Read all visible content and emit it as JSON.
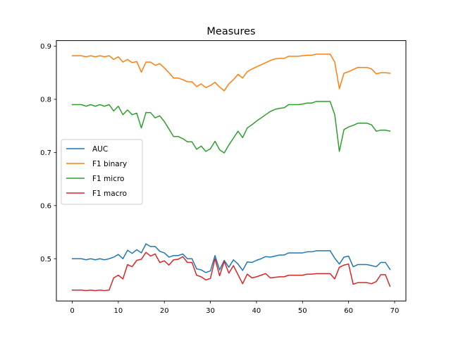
{
  "chart_data": {
    "type": "line",
    "title": "Measures",
    "xlabel": "",
    "ylabel": "",
    "xlim": [
      -3.45,
      72.45
    ],
    "ylim": [
      0.4205,
      0.9105
    ],
    "xticks": [
      0,
      10,
      20,
      30,
      40,
      50,
      60,
      70
    ],
    "yticks": [
      0.5,
      0.6,
      0.7,
      0.8,
      0.9
    ],
    "xtick_labels": [
      "0",
      "10",
      "20",
      "30",
      "40",
      "50",
      "60",
      "70"
    ],
    "ytick_labels": [
      "0.5",
      "0.6",
      "0.7",
      "0.8",
      "0.9"
    ],
    "grid": false,
    "legend_position": "center-left",
    "x": [
      0,
      1,
      2,
      3,
      4,
      5,
      6,
      7,
      8,
      9,
      10,
      11,
      12,
      13,
      14,
      15,
      16,
      17,
      18,
      19,
      20,
      21,
      22,
      23,
      24,
      25,
      26,
      27,
      28,
      29,
      30,
      31,
      32,
      33,
      34,
      35,
      36,
      37,
      38,
      39,
      40,
      41,
      42,
      43,
      44,
      45,
      46,
      47,
      48,
      49,
      50,
      51,
      52,
      53,
      54,
      55,
      56,
      57,
      58,
      59,
      60,
      61,
      62,
      63,
      64,
      65,
      66,
      67,
      68,
      69
    ],
    "series": [
      {
        "name": "AUC",
        "color": "#1f77b4",
        "values": [
          0.5,
          0.5,
          0.5,
          0.498,
          0.5,
          0.498,
          0.5,
          0.498,
          0.5,
          0.503,
          0.508,
          0.5,
          0.516,
          0.51,
          0.517,
          0.511,
          0.528,
          0.523,
          0.523,
          0.514,
          0.511,
          0.503,
          0.506,
          0.506,
          0.509,
          0.5,
          0.5,
          0.481,
          0.479,
          0.474,
          0.477,
          0.506,
          0.479,
          0.497,
          0.484,
          0.498,
          0.49,
          0.478,
          0.494,
          0.493,
          0.497,
          0.5,
          0.504,
          0.503,
          0.505,
          0.507,
          0.507,
          0.511,
          0.511,
          0.511,
          0.511,
          0.513,
          0.513,
          0.515,
          0.515,
          0.515,
          0.515,
          0.501,
          0.49,
          0.503,
          0.505,
          0.485,
          0.489,
          0.489,
          0.489,
          0.487,
          0.485,
          0.493,
          0.493,
          0.48
        ]
      },
      {
        "name": "F1 binary",
        "color": "#ff7f0e",
        "values": [
          0.882,
          0.882,
          0.882,
          0.88,
          0.882,
          0.88,
          0.882,
          0.88,
          0.882,
          0.875,
          0.88,
          0.87,
          0.875,
          0.869,
          0.871,
          0.851,
          0.87,
          0.87,
          0.864,
          0.867,
          0.859,
          0.85,
          0.84,
          0.84,
          0.837,
          0.833,
          0.833,
          0.824,
          0.829,
          0.822,
          0.826,
          0.832,
          0.823,
          0.816,
          0.829,
          0.837,
          0.847,
          0.84,
          0.852,
          0.857,
          0.861,
          0.865,
          0.869,
          0.873,
          0.876,
          0.877,
          0.877,
          0.881,
          0.881,
          0.881,
          0.882,
          0.883,
          0.883,
          0.885,
          0.885,
          0.885,
          0.885,
          0.87,
          0.82,
          0.849,
          0.852,
          0.856,
          0.86,
          0.86,
          0.86,
          0.857,
          0.848,
          0.85,
          0.85,
          0.849
        ]
      },
      {
        "name": "F1 micro",
        "color": "#2ca02c",
        "values": [
          0.79,
          0.79,
          0.79,
          0.787,
          0.79,
          0.787,
          0.79,
          0.787,
          0.79,
          0.778,
          0.787,
          0.771,
          0.78,
          0.771,
          0.774,
          0.746,
          0.775,
          0.775,
          0.765,
          0.769,
          0.758,
          0.744,
          0.73,
          0.73,
          0.726,
          0.72,
          0.72,
          0.706,
          0.712,
          0.702,
          0.707,
          0.721,
          0.705,
          0.699,
          0.714,
          0.727,
          0.74,
          0.728,
          0.746,
          0.752,
          0.759,
          0.765,
          0.771,
          0.777,
          0.781,
          0.783,
          0.784,
          0.79,
          0.79,
          0.79,
          0.791,
          0.793,
          0.793,
          0.796,
          0.796,
          0.796,
          0.796,
          0.771,
          0.702,
          0.743,
          0.748,
          0.751,
          0.755,
          0.755,
          0.755,
          0.752,
          0.74,
          0.742,
          0.742,
          0.74
        ]
      },
      {
        "name": "F1 macro",
        "color": "#d62728",
        "values": [
          0.441,
          0.441,
          0.441,
          0.44,
          0.441,
          0.44,
          0.441,
          0.44,
          0.441,
          0.464,
          0.469,
          0.462,
          0.489,
          0.485,
          0.497,
          0.499,
          0.512,
          0.505,
          0.509,
          0.493,
          0.496,
          0.488,
          0.498,
          0.499,
          0.504,
          0.493,
          0.493,
          0.469,
          0.466,
          0.46,
          0.463,
          0.5,
          0.468,
          0.495,
          0.473,
          0.487,
          0.47,
          0.453,
          0.471,
          0.464,
          0.466,
          0.469,
          0.472,
          0.464,
          0.465,
          0.466,
          0.466,
          0.469,
          0.469,
          0.469,
          0.469,
          0.471,
          0.471,
          0.472,
          0.472,
          0.472,
          0.472,
          0.462,
          0.484,
          0.488,
          0.49,
          0.452,
          0.455,
          0.455,
          0.455,
          0.453,
          0.457,
          0.47,
          0.47,
          0.448
        ]
      }
    ]
  }
}
